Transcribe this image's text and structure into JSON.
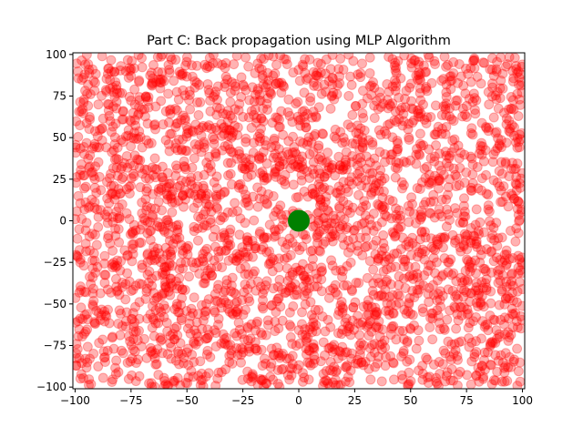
{
  "chart_data": {
    "type": "scatter",
    "title": "Part C: Back propagation using MLP Algorithm",
    "xlabel": "",
    "ylabel": "",
    "xlim": [
      -101,
      101
    ],
    "ylim": [
      -101,
      101
    ],
    "x_ticks": [
      -100,
      -75,
      -50,
      -25,
      0,
      25,
      50,
      75,
      100
    ],
    "y_ticks": [
      -100,
      -75,
      -50,
      -25,
      0,
      25,
      50,
      75,
      100
    ],
    "grid": false,
    "legend": "none",
    "series": [
      {
        "color": "#ff0000",
        "alpha": 0.3,
        "marker_size": 5,
        "point_count": 3000,
        "distribution": "uniform over [-100, 100] x [-100, 100]"
      },
      {
        "color": "#008000",
        "alpha": 1.0,
        "marker_size": 12,
        "points": [
          [
            0,
            0
          ]
        ]
      }
    ]
  }
}
